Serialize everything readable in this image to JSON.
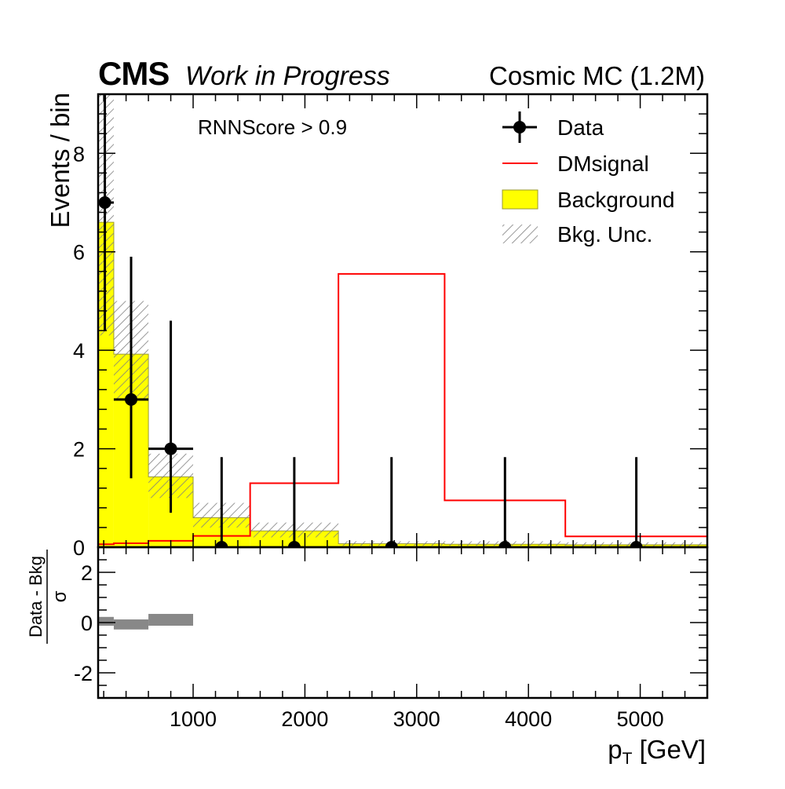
{
  "header": {
    "experiment": "CMS",
    "status": "Work in Progress",
    "sample": "Cosmic MC (1.2M)"
  },
  "chart_data": [
    {
      "type": "histogram",
      "panel": "main",
      "cut_label": "RNNScore > 0.9",
      "ylabel": "Events / bin",
      "xlim": [
        150,
        5600
      ],
      "ylim": [
        0,
        9.2
      ],
      "yticks": [
        0,
        2,
        4,
        6,
        8
      ],
      "bin_edges": [
        150,
        290,
        600,
        1000,
        1510,
        2300,
        3250,
        4330,
        5600
      ],
      "series": [
        {
          "name": "Background",
          "kind": "filled",
          "color": "#ffff00",
          "values": [
            6.6,
            3.92,
            1.43,
            0.6,
            0.33,
            0.07,
            0.06,
            0.05
          ]
        },
        {
          "name": "Bkg. Unc.",
          "kind": "hatched",
          "color": "#888888",
          "values": [
            [
              4.3,
              9.2
            ],
            [
              3.0,
              5.0
            ],
            [
              1.0,
              1.9
            ],
            [
              0.4,
              0.9
            ],
            [
              0.2,
              0.5
            ],
            [
              0.03,
              0.12
            ],
            [
              0.03,
              0.12
            ],
            [
              0.02,
              0.1
            ]
          ]
        },
        {
          "name": "DMsignal",
          "kind": "step",
          "color": "#ff0000",
          "values": [
            0.06,
            0.08,
            0.13,
            0.23,
            1.3,
            5.55,
            0.95,
            0.22
          ]
        },
        {
          "name": "Data",
          "kind": "points",
          "color": "#000000",
          "x": [
            210,
            445,
            800,
            1255,
            1905,
            2775,
            3790,
            4965
          ],
          "xerr": [
            [
              150,
              290
            ],
            [
              290,
              600
            ],
            [
              600,
              1000
            ],
            null,
            null,
            null,
            null,
            null
          ],
          "values": [
            7,
            3,
            2,
            0,
            0,
            0,
            0,
            0
          ],
          "yerr": [
            [
              4.4,
              9.4
            ],
            [
              1.4,
              5.9
            ],
            [
              0.7,
              4.6
            ],
            [
              0,
              1.83
            ],
            [
              0,
              1.83
            ],
            [
              0,
              1.83
            ],
            [
              0,
              1.83
            ],
            [
              0,
              1.83
            ]
          ]
        }
      ],
      "legend": {
        "placement": "top-right",
        "entries": [
          {
            "name": "Data",
            "symbol": "marker"
          },
          {
            "name": "DMsignal",
            "symbol": "line"
          },
          {
            "name": "Background",
            "symbol": "box"
          },
          {
            "name": "Bkg. Unc.",
            "symbol": "hatch"
          }
        ]
      }
    },
    {
      "type": "bar",
      "panel": "ratio",
      "ylabel_num": "Data - Bkg",
      "ylabel_den": "σ",
      "xlabel": "p",
      "xlabel_sub": "T",
      "xlabel_unit": "[GeV]",
      "xlim": [
        150,
        5600
      ],
      "ylim": [
        -3,
        3
      ],
      "yticks": [
        -2,
        0,
        2
      ],
      "xticks": [
        1000,
        2000,
        3000,
        4000,
        5000
      ],
      "color": "#888888",
      "bin_edges": [
        150,
        290,
        600,
        1000
      ],
      "values": [
        0.1,
        -0.15,
        0.22
      ]
    }
  ]
}
